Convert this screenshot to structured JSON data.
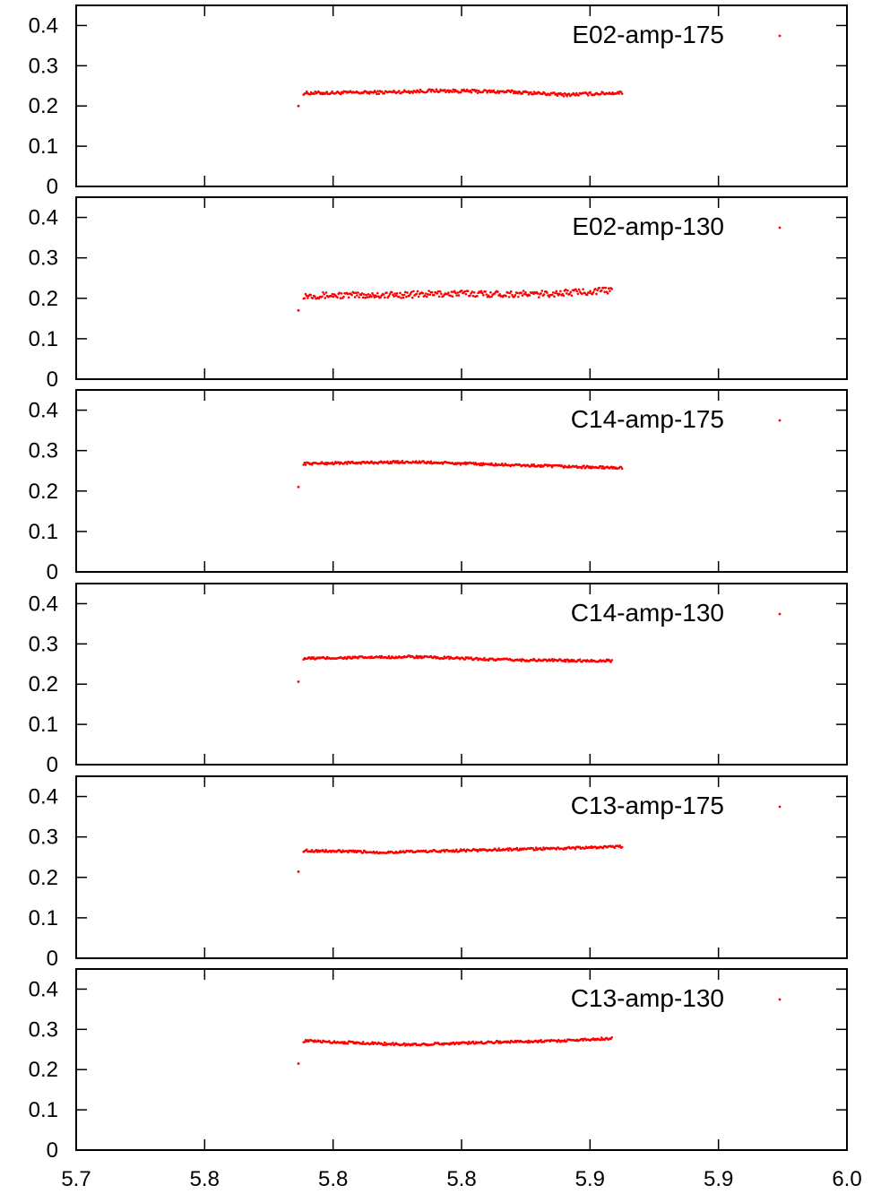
{
  "chart_data": [
    {
      "type": "scatter",
      "legend": "E02-amp-175",
      "legend_position": "top-right",
      "color": "#ff0000",
      "ylim": [
        0,
        0.45
      ],
      "yticks": [
        "0",
        "0.1",
        "0.2",
        "0.3",
        "0.4"
      ],
      "first_point": [
        5.7865,
        0.2
      ],
      "x_range": [
        5.7865,
        5.9125
      ],
      "baseline": 0.232,
      "drift": [
        [
          5.79,
          0.232
        ],
        [
          5.82,
          0.234
        ],
        [
          5.84,
          0.238
        ],
        [
          5.87,
          0.235
        ],
        [
          5.89,
          0.228
        ],
        [
          5.9125,
          0.233
        ]
      ],
      "noise": 0.004
    },
    {
      "type": "scatter",
      "legend": "E02-amp-130",
      "legend_position": "top-right",
      "color": "#ff0000",
      "ylim": [
        0,
        0.45
      ],
      "yticks": [
        "0",
        "0.1",
        "0.2",
        "0.3",
        "0.4"
      ],
      "first_point": [
        5.7865,
        0.17
      ],
      "x_range": [
        5.7865,
        5.9085
      ],
      "drift": [
        [
          5.79,
          0.207
        ],
        [
          5.82,
          0.208
        ],
        [
          5.85,
          0.212
        ],
        [
          5.88,
          0.21
        ],
        [
          5.9085,
          0.22
        ]
      ],
      "noise": 0.008
    },
    {
      "type": "scatter",
      "legend": "C14-amp-175",
      "legend_position": "top-right",
      "color": "#ff0000",
      "ylim": [
        0,
        0.45
      ],
      "yticks": [
        "0",
        "0.1",
        "0.2",
        "0.3",
        "0.4"
      ],
      "first_point": [
        5.7865,
        0.21
      ],
      "x_range": [
        5.7865,
        5.9125
      ],
      "drift": [
        [
          5.79,
          0.268
        ],
        [
          5.83,
          0.272
        ],
        [
          5.87,
          0.264
        ],
        [
          5.9125,
          0.257
        ]
      ],
      "noise": 0.003
    },
    {
      "type": "scatter",
      "legend": "C14-amp-130",
      "legend_position": "top-right",
      "color": "#ff0000",
      "ylim": [
        0,
        0.45
      ],
      "yticks": [
        "0",
        "0.1",
        "0.2",
        "0.3",
        "0.4"
      ],
      "first_point": [
        5.7865,
        0.206
      ],
      "x_range": [
        5.7865,
        5.9085
      ],
      "drift": [
        [
          5.79,
          0.264
        ],
        [
          5.83,
          0.268
        ],
        [
          5.87,
          0.26
        ],
        [
          5.9085,
          0.258
        ]
      ],
      "noise": 0.003
    },
    {
      "type": "scatter",
      "legend": "C13-amp-175",
      "legend_position": "top-right",
      "color": "#ff0000",
      "ylim": [
        0,
        0.45
      ],
      "yticks": [
        "0",
        "0.1",
        "0.2",
        "0.3",
        "0.4"
      ],
      "first_point": [
        5.7865,
        0.214
      ],
      "x_range": [
        5.7865,
        5.9125
      ],
      "drift": [
        [
          5.79,
          0.266
        ],
        [
          5.82,
          0.262
        ],
        [
          5.86,
          0.268
        ],
        [
          5.89,
          0.272
        ],
        [
          5.9125,
          0.276
        ]
      ],
      "noise": 0.003
    },
    {
      "type": "scatter",
      "legend": "C13-amp-130",
      "legend_position": "top-right",
      "color": "#ff0000",
      "ylim": [
        0,
        0.45
      ],
      "yticks": [
        "0",
        "0.1",
        "0.2",
        "0.3",
        "0.4"
      ],
      "first_point": [
        5.7865,
        0.215
      ],
      "x_range": [
        5.7865,
        5.9085
      ],
      "drift": [
        [
          5.79,
          0.271
        ],
        [
          5.83,
          0.262
        ],
        [
          5.86,
          0.268
        ],
        [
          5.89,
          0.272
        ],
        [
          5.9085,
          0.278
        ]
      ],
      "noise": 0.003
    }
  ],
  "shared_x_axis": {
    "xlim": [
      5.7,
      6.0
    ],
    "tick_values": [
      5.7,
      5.75,
      5.8,
      5.85,
      5.9,
      5.95,
      6.0
    ],
    "tick_labels": [
      "5.7",
      "5.8",
      "5.8",
      "5.8",
      "5.9",
      "5.9",
      "6.0"
    ]
  }
}
